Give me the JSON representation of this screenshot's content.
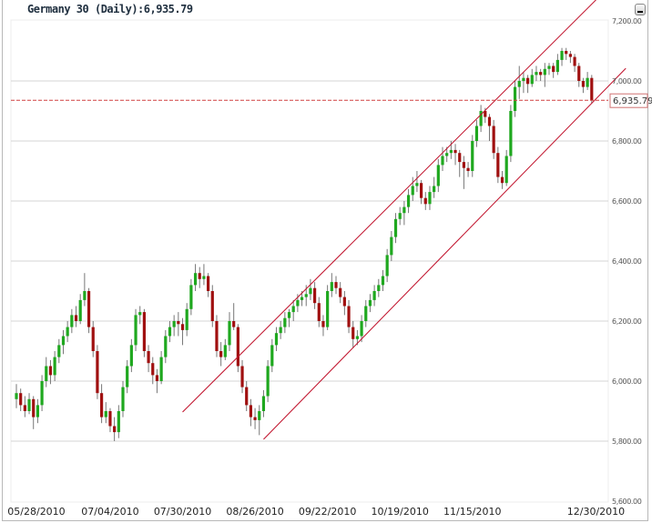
{
  "header": {
    "title": "Germany 30 (Daily):6,935.79",
    "minimize_icon": "minimize-icon"
  },
  "colors": {
    "up": "#1fa81f",
    "down": "#a01010",
    "trendline": "#c0102a",
    "grid": "#d4d4d4",
    "last_price_line": "#d04040"
  },
  "chart_data": {
    "type": "candlestick",
    "title": "Germany 30 (Daily):6,935.79",
    "ylim": [
      5600,
      7200
    ],
    "y_ticks": [
      7200,
      7000,
      6800,
      6600,
      6400,
      6200,
      6000,
      5800,
      5600
    ],
    "y_tick_labels": [
      "7,200.00",
      "7,000.00",
      "6,800.00",
      "6,600.00",
      "6,400.00",
      "6,200.00",
      "6,000.00",
      "5,800.00",
      "5,600.00"
    ],
    "x_tick_labels": [
      "05/28/2010",
      "07/04/2010",
      "07/30/2010",
      "08/26/2010",
      "09/22/2010",
      "10/19/2010",
      "11/15/2010",
      "12/30/2010"
    ],
    "grid": true,
    "last_price": 6935.79,
    "last_price_label": "6,935.79",
    "ohlc_fields": [
      "open",
      "high",
      "low",
      "close"
    ],
    "candles": [
      [
        5940,
        5990,
        5910,
        5960
      ],
      [
        5960,
        5975,
        5900,
        5920
      ],
      [
        5920,
        5950,
        5880,
        5900
      ],
      [
        5900,
        5960,
        5890,
        5940
      ],
      [
        5940,
        5950,
        5840,
        5880
      ],
      [
        5880,
        5940,
        5860,
        5920
      ],
      [
        5920,
        6020,
        5900,
        6000
      ],
      [
        6000,
        6080,
        5980,
        6050
      ],
      [
        6050,
        6070,
        5990,
        6020
      ],
      [
        6020,
        6100,
        6000,
        6080
      ],
      [
        6080,
        6140,
        6060,
        6120
      ],
      [
        6120,
        6170,
        6090,
        6150
      ],
      [
        6150,
        6200,
        6130,
        6180
      ],
      [
        6180,
        6240,
        6160,
        6220
      ],
      [
        6220,
        6250,
        6180,
        6200
      ],
      [
        6200,
        6290,
        6190,
        6270
      ],
      [
        6270,
        6360,
        6250,
        6300
      ],
      [
        6300,
        6310,
        6160,
        6180
      ],
      [
        6180,
        6200,
        6080,
        6100
      ],
      [
        6100,
        6120,
        5940,
        5960
      ],
      [
        5960,
        5990,
        5860,
        5880
      ],
      [
        5880,
        5930,
        5860,
        5900
      ],
      [
        5900,
        5910,
        5830,
        5850
      ],
      [
        5850,
        5880,
        5800,
        5830
      ],
      [
        5830,
        5920,
        5810,
        5900
      ],
      [
        5900,
        6000,
        5880,
        5980
      ],
      [
        5980,
        6070,
        5960,
        6050
      ],
      [
        6050,
        6140,
        6030,
        6120
      ],
      [
        6120,
        6240,
        6100,
        6220
      ],
      [
        6220,
        6250,
        6190,
        6230
      ],
      [
        6230,
        6240,
        6080,
        6100
      ],
      [
        6100,
        6120,
        6030,
        6060
      ],
      [
        6060,
        6080,
        5990,
        6020
      ],
      [
        6020,
        6040,
        5960,
        6000
      ],
      [
        6000,
        6100,
        5990,
        6080
      ],
      [
        6080,
        6170,
        6060,
        6150
      ],
      [
        6150,
        6200,
        6130,
        6180
      ],
      [
        6180,
        6220,
        6150,
        6200
      ],
      [
        6200,
        6230,
        6150,
        6190
      ],
      [
        6190,
        6210,
        6120,
        6170
      ],
      [
        6170,
        6260,
        6150,
        6240
      ],
      [
        6240,
        6340,
        6220,
        6320
      ],
      [
        6320,
        6390,
        6300,
        6360
      ],
      [
        6360,
        6380,
        6310,
        6340
      ],
      [
        6340,
        6390,
        6320,
        6350
      ],
      [
        6350,
        6360,
        6280,
        6300
      ],
      [
        6300,
        6320,
        6180,
        6200
      ],
      [
        6200,
        6220,
        6080,
        6100
      ],
      [
        6100,
        6130,
        6050,
        6080
      ],
      [
        6080,
        6140,
        6070,
        6120
      ],
      [
        6120,
        6230,
        6100,
        6200
      ],
      [
        6200,
        6260,
        6170,
        6180
      ],
      [
        6180,
        6190,
        6030,
        6050
      ],
      [
        6050,
        6070,
        5960,
        5980
      ],
      [
        5980,
        6000,
        5900,
        5920
      ],
      [
        5920,
        5940,
        5850,
        5880
      ],
      [
        5880,
        5910,
        5840,
        5870
      ],
      [
        5870,
        5920,
        5820,
        5900
      ],
      [
        5900,
        5970,
        5880,
        5950
      ],
      [
        5950,
        6070,
        5930,
        6050
      ],
      [
        6050,
        6140,
        6030,
        6120
      ],
      [
        6120,
        6180,
        6100,
        6160
      ],
      [
        6160,
        6200,
        6140,
        6180
      ],
      [
        6180,
        6230,
        6160,
        6210
      ],
      [
        6210,
        6240,
        6180,
        6230
      ],
      [
        6230,
        6270,
        6200,
        6250
      ],
      [
        6250,
        6290,
        6230,
        6270
      ],
      [
        6270,
        6300,
        6250,
        6280
      ],
      [
        6280,
        6320,
        6250,
        6290
      ],
      [
        6290,
        6340,
        6270,
        6310
      ],
      [
        6310,
        6330,
        6240,
        6260
      ],
      [
        6260,
        6280,
        6180,
        6200
      ],
      [
        6200,
        6220,
        6150,
        6180
      ],
      [
        6180,
        6320,
        6170,
        6300
      ],
      [
        6300,
        6360,
        6280,
        6330
      ],
      [
        6330,
        6350,
        6290,
        6310
      ],
      [
        6310,
        6330,
        6260,
        6280
      ],
      [
        6280,
        6300,
        6220,
        6250
      ],
      [
        6250,
        6270,
        6160,
        6180
      ],
      [
        6180,
        6200,
        6110,
        6140
      ],
      [
        6140,
        6170,
        6120,
        6150
      ],
      [
        6150,
        6220,
        6130,
        6200
      ],
      [
        6200,
        6270,
        6180,
        6250
      ],
      [
        6250,
        6290,
        6230,
        6270
      ],
      [
        6270,
        6320,
        6250,
        6300
      ],
      [
        6300,
        6340,
        6280,
        6320
      ],
      [
        6320,
        6370,
        6300,
        6350
      ],
      [
        6350,
        6440,
        6330,
        6420
      ],
      [
        6420,
        6500,
        6400,
        6480
      ],
      [
        6480,
        6560,
        6460,
        6540
      ],
      [
        6540,
        6580,
        6520,
        6560
      ],
      [
        6560,
        6600,
        6520,
        6580
      ],
      [
        6580,
        6640,
        6560,
        6620
      ],
      [
        6620,
        6680,
        6600,
        6650
      ],
      [
        6650,
        6700,
        6630,
        6660
      ],
      [
        6660,
        6670,
        6590,
        6610
      ],
      [
        6610,
        6630,
        6570,
        6590
      ],
      [
        6590,
        6650,
        6570,
        6630
      ],
      [
        6630,
        6680,
        6610,
        6650
      ],
      [
        6650,
        6740,
        6630,
        6720
      ],
      [
        6720,
        6780,
        6700,
        6750
      ],
      [
        6750,
        6780,
        6730,
        6760
      ],
      [
        6760,
        6800,
        6740,
        6770
      ],
      [
        6770,
        6790,
        6720,
        6760
      ],
      [
        6760,
        6770,
        6680,
        6730
      ],
      [
        6730,
        6750,
        6640,
        6710
      ],
      [
        6710,
        6730,
        6680,
        6700
      ],
      [
        6700,
        6820,
        6680,
        6800
      ],
      [
        6800,
        6870,
        6780,
        6850
      ],
      [
        6850,
        6920,
        6830,
        6900
      ],
      [
        6900,
        6910,
        6860,
        6880
      ],
      [
        6880,
        6890,
        6800,
        6850
      ],
      [
        6850,
        6870,
        6740,
        6760
      ],
      [
        6760,
        6780,
        6660,
        6680
      ],
      [
        6680,
        6700,
        6640,
        6660
      ],
      [
        6660,
        6770,
        6650,
        6750
      ],
      [
        6750,
        6920,
        6730,
        6900
      ],
      [
        6900,
        7000,
        6880,
        6980
      ],
      [
        6980,
        7050,
        6940,
        7000
      ],
      [
        7000,
        7030,
        6960,
        7010
      ],
      [
        7010,
        7020,
        6960,
        6990
      ],
      [
        6990,
        7040,
        6980,
        7020
      ],
      [
        7020,
        7050,
        7000,
        7030
      ],
      [
        7030,
        7040,
        7000,
        7020
      ],
      [
        7020,
        7060,
        6980,
        7040
      ],
      [
        7040,
        7060,
        7020,
        7050
      ],
      [
        7050,
        7060,
        7010,
        7030
      ],
      [
        7030,
        7090,
        7020,
        7070
      ],
      [
        7070,
        7110,
        7050,
        7100
      ],
      [
        7100,
        7110,
        7070,
        7090
      ],
      [
        7090,
        7100,
        7060,
        7080
      ],
      [
        7080,
        7090,
        7030,
        7050
      ],
      [
        7050,
        7060,
        6980,
        7000
      ],
      [
        7000,
        7010,
        6960,
        6980
      ],
      [
        6980,
        7030,
        6970,
        7010
      ],
      [
        7010,
        7020,
        6925,
        6935.79
      ]
    ],
    "trendlines": [
      {
        "start": {
          "bar": 39,
          "price": 5897
        },
        "end": {
          "bar": 136,
          "price": 7270
        }
      },
      {
        "start": {
          "bar": 58,
          "price": 5806
        },
        "end": {
          "bar": 143,
          "price": 7042
        }
      }
    ]
  }
}
